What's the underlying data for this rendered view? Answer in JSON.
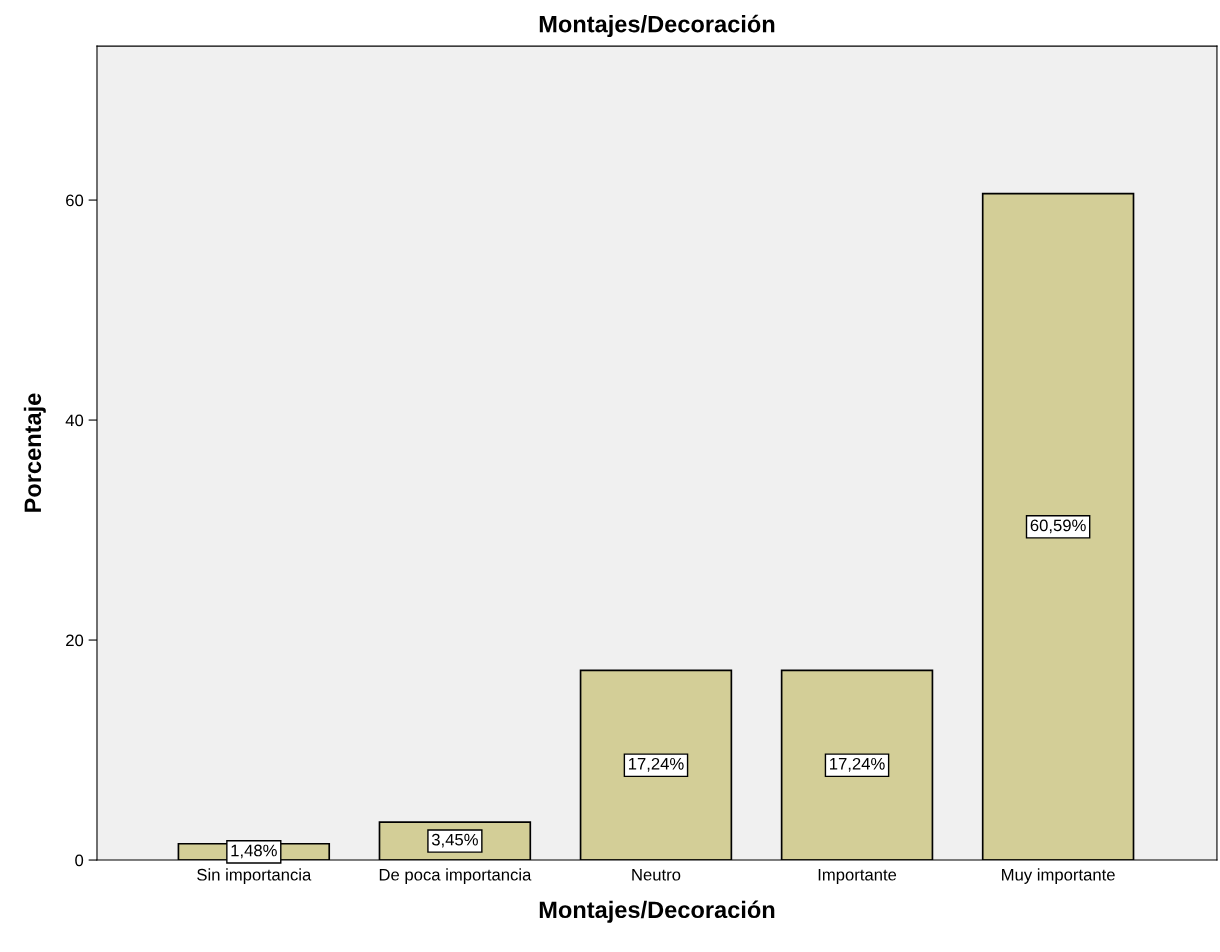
{
  "chart_data": {
    "type": "bar",
    "title": "Montajes/Decoración",
    "xlabel": "Montajes/Decoración",
    "ylabel": "Porcentaje",
    "categories": [
      "Sin importancia",
      "De poca importancia",
      "Neutro",
      "Importante",
      "Muy importante"
    ],
    "values": [
      1.48,
      3.45,
      17.24,
      17.24,
      60.59
    ],
    "value_labels": [
      "1,48%",
      "3,45%",
      "17,24%",
      "17,24%",
      "60,59%"
    ],
    "color": "#d3ce97",
    "ylim": [
      0,
      74
    ],
    "yticks": [
      0,
      20,
      40,
      60
    ],
    "grid": false
  }
}
